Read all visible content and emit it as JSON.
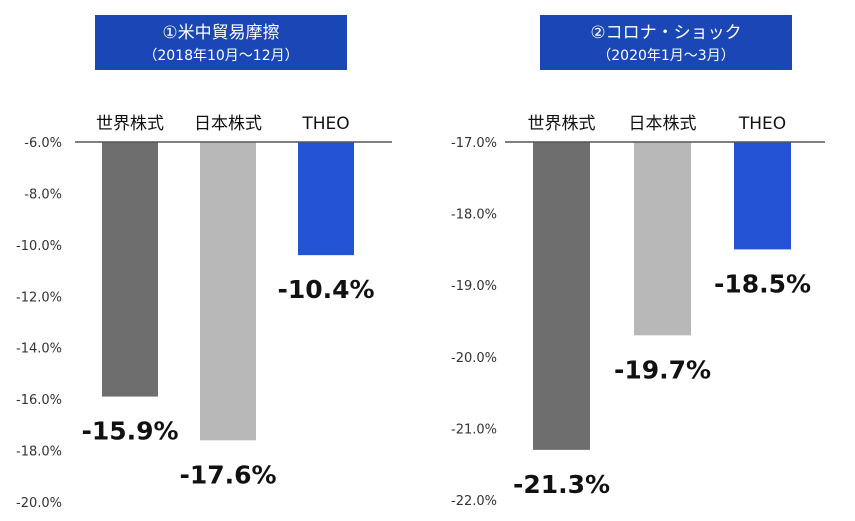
{
  "colors": {
    "world": "#6e6e6e",
    "japan": "#b8b8b8",
    "theo": "#2453d6",
    "title_bg": "#1a47b5"
  },
  "chart_data": [
    {
      "type": "bar",
      "title": "①米中貿易摩擦",
      "subtitle": "（2018年10月～12月）",
      "categories": [
        "世界株式",
        "日本株式",
        "THEO"
      ],
      "values": [
        -15.9,
        -17.6,
        -10.4
      ],
      "value_labels": [
        "-15.9%",
        "-17.6%",
        "-10.4%"
      ],
      "ylim": [
        -20,
        -6
      ],
      "yticks": [
        "-6.0%",
        "-8.0%",
        "-10.0%",
        "-12.0%",
        "-14.0%",
        "-16.0%",
        "-18.0%",
        "-20.0%"
      ],
      "ytick_values": [
        -6,
        -8,
        -10,
        -12,
        -14,
        -16,
        -18,
        -20
      ],
      "xlabel": "",
      "ylabel": ""
    },
    {
      "type": "bar",
      "title": "②コロナ・ショック",
      "subtitle": "（2020年1月～3月）",
      "categories": [
        "世界株式",
        "日本株式",
        "THEO"
      ],
      "values": [
        -21.3,
        -19.7,
        -18.5
      ],
      "value_labels": [
        "-21.3%",
        "-19.7%",
        "-18.5%"
      ],
      "ylim": [
        -22,
        -17
      ],
      "yticks": [
        "-17.0%",
        "-18.0%",
        "-19.0%",
        "-20.0%",
        "-21.0%",
        "-22.0%"
      ],
      "ytick_values": [
        -17,
        -18,
        -19,
        -20,
        -21,
        -22
      ],
      "xlabel": "",
      "ylabel": ""
    }
  ]
}
